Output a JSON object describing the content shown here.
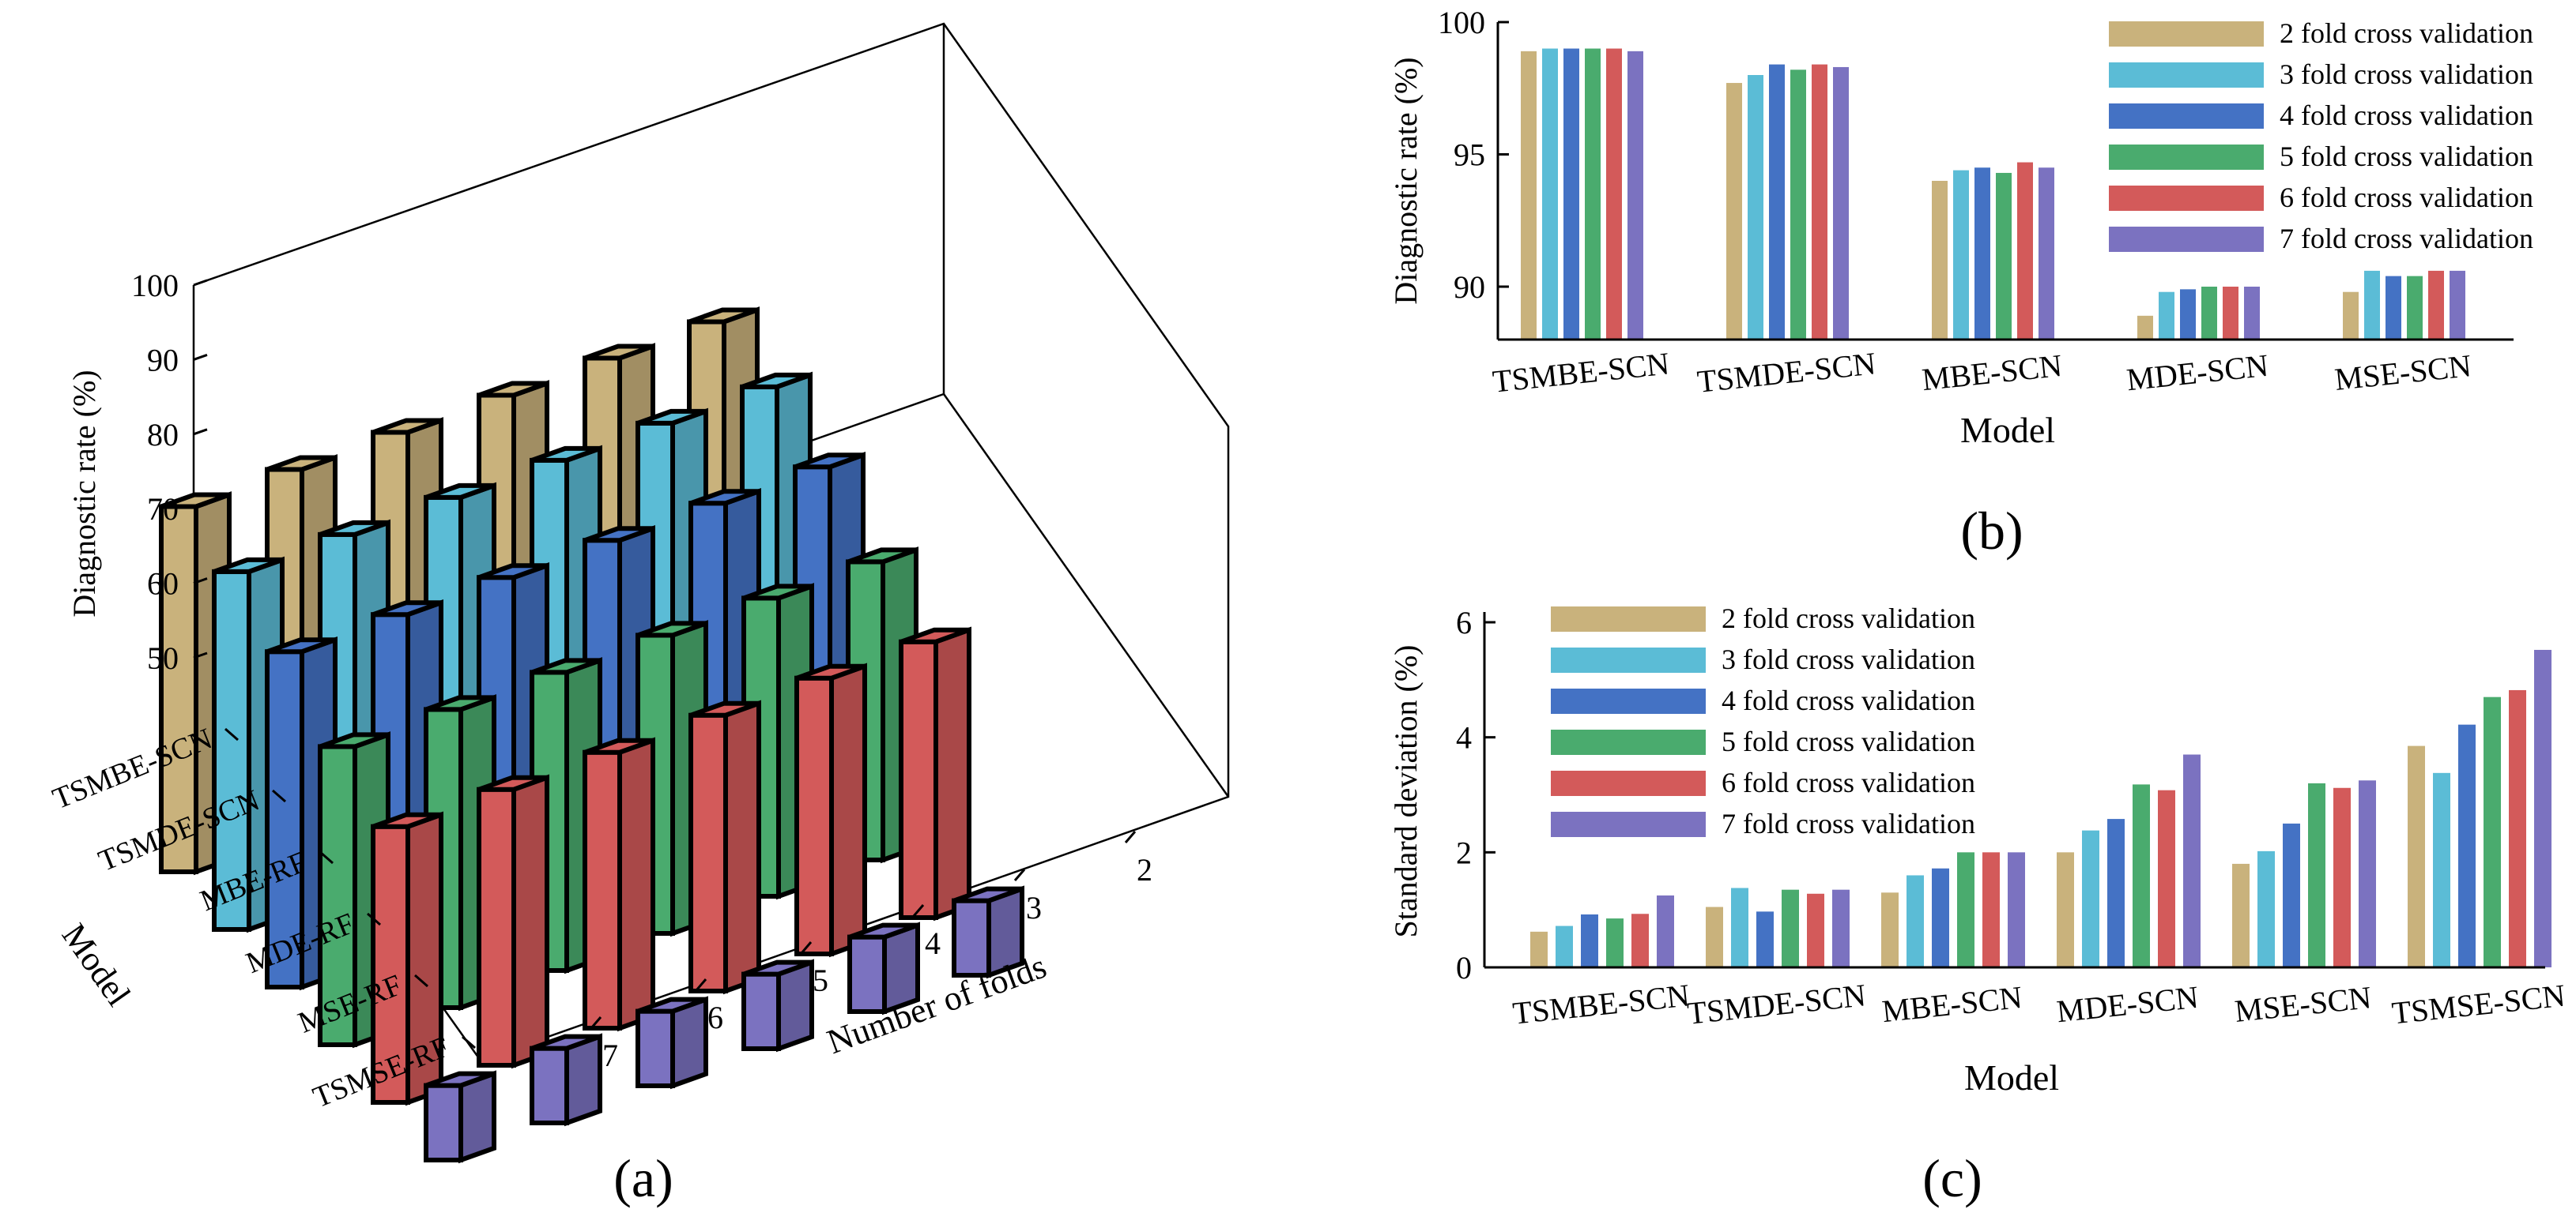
{
  "palette": {
    "fold2": "#c9b27c",
    "fold3": "#5bbcd6",
    "fold4": "#4472c4",
    "fold5": "#4aab6e",
    "fold6": "#d35a5a",
    "fold7": "#7b72c0"
  },
  "chart_data": [
    {
      "id": "a",
      "type": "bar3d",
      "panel_label": "(a)",
      "zlabel": "Diagnostic rate (%)",
      "ylabel": "Model",
      "xlabel": "Number of folds",
      "zticks": [
        50,
        60,
        70,
        80,
        90,
        100
      ],
      "zlim": [
        50,
        100
      ],
      "models": [
        "TSMBE-SCN",
        "TSMDE-SCN",
        "MBE-RF",
        "MDE-RF",
        "MSE-RF",
        "TSMSE-RF"
      ],
      "folds": [
        "2",
        "3",
        "4",
        "5",
        "6",
        "7"
      ],
      "values": [
        [
          99,
          99,
          99,
          99,
          99,
          99
        ],
        [
          98,
          98,
          98,
          98,
          98,
          98
        ],
        [
          95,
          95,
          95,
          95,
          95,
          95
        ],
        [
          90,
          90,
          90,
          90,
          90,
          90
        ],
        [
          87,
          87,
          87,
          87,
          87,
          87
        ],
        [
          60,
          60,
          60,
          60,
          60,
          60
        ]
      ]
    },
    {
      "id": "b",
      "type": "bar",
      "panel_label": "(b)",
      "xlabel": "Model",
      "ylabel": "Diagnostic rate (%)",
      "ylim": [
        88,
        100
      ],
      "yticks": [
        90,
        95,
        100
      ],
      "categories": [
        "TSMBE-SCN",
        "TSMDE-SCN",
        "MBE-SCN",
        "MDE-SCN",
        "MSE-SCN"
      ],
      "series": [
        {
          "name": "2 fold cross validation",
          "values": [
            98.9,
            97.7,
            94.0,
            88.9,
            89.8
          ]
        },
        {
          "name": "3 fold cross validation",
          "values": [
            99.0,
            98.0,
            94.4,
            89.8,
            90.6
          ]
        },
        {
          "name": "4 fold cross validation",
          "values": [
            99.0,
            98.4,
            94.5,
            89.9,
            90.4
          ]
        },
        {
          "name": "5 fold cross validation",
          "values": [
            99.0,
            98.2,
            94.3,
            90.0,
            90.4
          ]
        },
        {
          "name": "6 fold cross validation",
          "values": [
            99.0,
            98.4,
            94.7,
            90.0,
            90.6
          ]
        },
        {
          "name": "7 fold cross validation",
          "values": [
            98.9,
            98.3,
            94.5,
            90.0,
            90.6
          ]
        }
      ]
    },
    {
      "id": "c",
      "type": "bar",
      "panel_label": "(c)",
      "xlabel": "Model",
      "ylabel": "Standard deviation (%)",
      "ylim": [
        0,
        6
      ],
      "yticks": [
        0,
        2,
        4,
        6
      ],
      "categories": [
        "TSMBE-SCN",
        "TSMDE-SCN",
        "MBE-SCN",
        "MDE-SCN",
        "MSE-SCN",
        "TSMSE-SCN"
      ],
      "series": [
        {
          "name": "2 fold cross validation",
          "values": [
            0.62,
            1.05,
            1.3,
            2.0,
            1.8,
            3.85
          ]
        },
        {
          "name": "3 fold cross validation",
          "values": [
            0.72,
            1.38,
            1.6,
            2.38,
            2.02,
            3.38
          ]
        },
        {
          "name": "4 fold cross validation",
          "values": [
            0.92,
            0.97,
            1.72,
            2.58,
            2.5,
            4.22
          ]
        },
        {
          "name": "5 fold cross validation",
          "values": [
            0.85,
            1.35,
            2.0,
            3.18,
            3.2,
            4.7
          ]
        },
        {
          "name": "6 fold cross validation",
          "values": [
            0.93,
            1.28,
            2.0,
            3.08,
            3.12,
            4.82
          ]
        },
        {
          "name": "7 fold cross validation",
          "values": [
            1.25,
            1.35,
            2.0,
            3.7,
            3.25,
            5.52
          ]
        }
      ]
    }
  ]
}
